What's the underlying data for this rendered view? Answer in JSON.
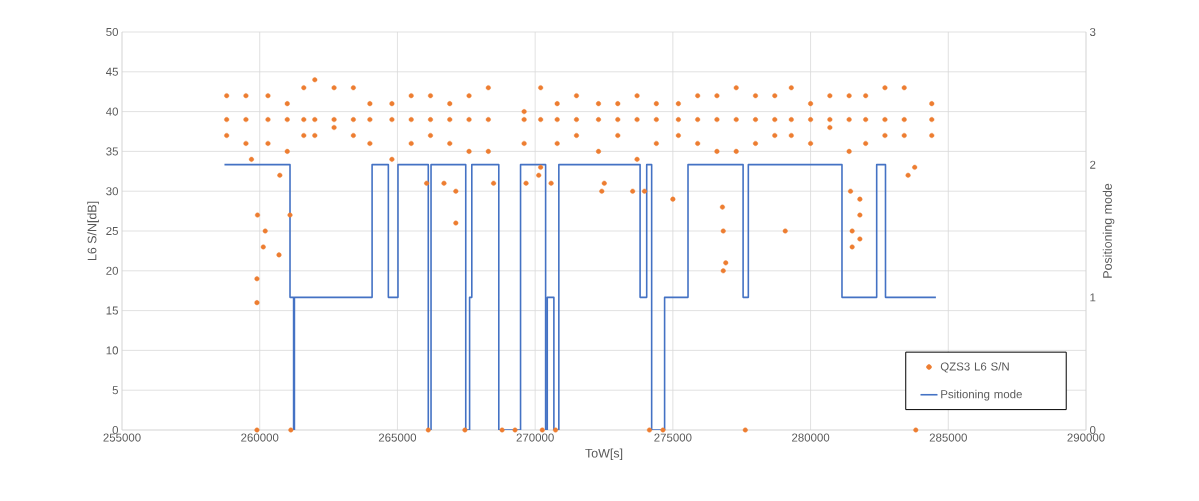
{
  "chart_data": {
    "type": "scatter",
    "xlabel": "ToW[s]",
    "ylabel": "L6 S/N[dB]",
    "y2label": "Positioning mode",
    "xlim": [
      255000,
      290000
    ],
    "xticks": [
      255000,
      260000,
      265000,
      270000,
      275000,
      280000,
      285000,
      290000
    ],
    "ylim": [
      0,
      50
    ],
    "yticks": [
      0,
      5,
      10,
      15,
      20,
      25,
      30,
      35,
      40,
      45,
      50
    ],
    "y2lim": [
      0,
      3
    ],
    "y2ticks": [
      0,
      1,
      2,
      3
    ],
    "grid": true,
    "legend": "bottom right",
    "series": [
      {
        "name": "QZS3 L6 S/N",
        "marker": "circle",
        "color": "#ed7d31",
        "x": [
          258800,
          258800,
          258800,
          259500,
          259500,
          259500,
          260300,
          260300,
          260300,
          261000,
          261000,
          261000,
          261600,
          261600,
          261600,
          262000,
          262000,
          262000,
          262700,
          262700,
          262700,
          263400,
          263400,
          263400,
          264000,
          264000,
          264000,
          264800,
          264800,
          264800,
          265500,
          265500,
          265500,
          266200,
          266200,
          266200,
          266900,
          266900,
          266900,
          267600,
          267600,
          267600,
          268300,
          268300,
          268300,
          269600,
          269600,
          269600,
          270200,
          270200,
          270200,
          270800,
          270800,
          270800,
          271500,
          271500,
          271500,
          272300,
          272300,
          272300,
          273000,
          273000,
          273000,
          273700,
          273700,
          273700,
          274400,
          274400,
          274400,
          275200,
          275200,
          275200,
          275900,
          275900,
          275900,
          276600,
          276600,
          276600,
          277300,
          277300,
          277300,
          278000,
          278000,
          278000,
          278700,
          278700,
          278700,
          279300,
          279300,
          279300,
          280000,
          280000,
          280000,
          280700,
          280700,
          280700,
          281400,
          281400,
          281400,
          282000,
          282000,
          282000,
          282700,
          282700,
          282700,
          283400,
          283400,
          283400,
          284400,
          284400,
          284400,
          259700,
          259920,
          260200,
          260130,
          260700,
          259900,
          259900,
          260730,
          261100,
          259900,
          261130,
          266060,
          266690,
          267120,
          267120,
          268490,
          269670,
          266120,
          267450,
          268800,
          269270,
          272420,
          272510,
          273540,
          275000,
          276830,
          276920,
          276830,
          276800,
          279080,
          277630,
          270260,
          270740,
          274150,
          274640,
          270130,
          270580,
          273970,
          281510,
          281510,
          281790,
          281790,
          281790,
          281450,
          283540,
          283780,
          283820
        ],
        "values": [
          42,
          39,
          37,
          42,
          39,
          36,
          42,
          39,
          36,
          41,
          39,
          35,
          43,
          39,
          37,
          44,
          39,
          37,
          43,
          39,
          38,
          43,
          39,
          37,
          41,
          39,
          36,
          41,
          39,
          34,
          42,
          39,
          36,
          42,
          39,
          37,
          41,
          39,
          36,
          42,
          39,
          35,
          43,
          39,
          35,
          40,
          39,
          36,
          43,
          39,
          33,
          41,
          39,
          36,
          42,
          39,
          37,
          41,
          39,
          35,
          41,
          39,
          37,
          42,
          39,
          34,
          41,
          39,
          36,
          41,
          39,
          37,
          42,
          39,
          36,
          42,
          39,
          35,
          43,
          39,
          35,
          42,
          39,
          36,
          42,
          39,
          37,
          43,
          39,
          37,
          41,
          39,
          36,
          42,
          39,
          38,
          42,
          39,
          35,
          42,
          39,
          36,
          43,
          39,
          37,
          43,
          39,
          37,
          41,
          39,
          37,
          34,
          27,
          25,
          23,
          22,
          19,
          16,
          32,
          27,
          0,
          0,
          31,
          31,
          30,
          26,
          31,
          31,
          0,
          0,
          0,
          0,
          30,
          31,
          30,
          29,
          20,
          21,
          25,
          28,
          25,
          0,
          0,
          0,
          0,
          0,
          32,
          31,
          30,
          25,
          23,
          24,
          27,
          29,
          30,
          32,
          33,
          0
        ]
      },
      {
        "name": "Psitioning mode",
        "type": "step",
        "axis": "y2",
        "color": "#4472c4",
        "x": [
          258720,
          261100,
          261230,
          261260,
          264080,
          264670,
          265020,
          266120,
          266220,
          267480,
          267620,
          267700,
          268680,
          269470,
          270380,
          270440,
          270680,
          270860,
          273810,
          274050,
          274230,
          274700,
          275550,
          277550,
          277740,
          281140,
          282400,
          282720,
          284550
        ],
        "values": [
          2,
          1,
          0,
          1,
          2,
          1,
          2,
          0,
          2,
          0,
          1,
          2,
          0,
          2,
          0,
          1,
          0,
          2,
          1,
          2,
          0,
          1,
          2,
          1,
          2,
          1,
          2,
          1,
          1
        ]
      }
    ]
  }
}
